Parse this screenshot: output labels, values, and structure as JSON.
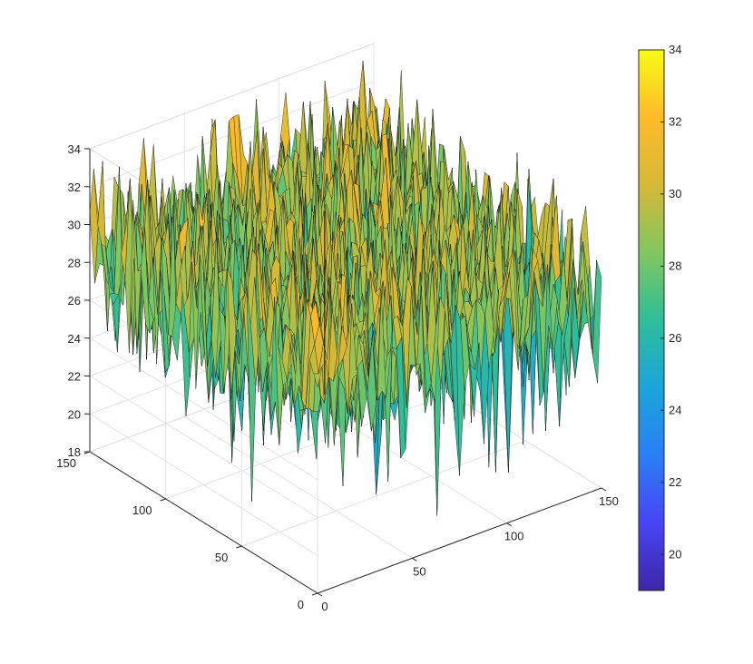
{
  "chart_data": {
    "type": "surface",
    "title": "",
    "xlabel": "",
    "ylabel": "",
    "zlabel": "",
    "x_range": [
      0,
      150
    ],
    "y_range": [
      0,
      150
    ],
    "z_range": [
      18,
      34
    ],
    "x_ticks": [
      "0",
      "50",
      "100",
      "150"
    ],
    "y_ticks": [
      "0",
      "50",
      "100",
      "150"
    ],
    "z_ticks": [
      "18",
      "20",
      "22",
      "24",
      "26",
      "28",
      "30",
      "32",
      "34"
    ],
    "grid": true,
    "grid_size": 150,
    "surface_mean": 28.5,
    "surface_range_min": 18.5,
    "surface_range_max": 33.5,
    "spike": {
      "x": 100,
      "y": 120,
      "z_high": 33.2,
      "z_low": 18.8
    },
    "colormap": [
      "#3e26a8",
      "#4745f4",
      "#2a7ff6",
      "#1ba5da",
      "#2ebe99",
      "#81c75f",
      "#d6b937",
      "#fdbb2a",
      "#f9fb15"
    ],
    "colorbar": {
      "min": 19,
      "max": 34,
      "ticks": [
        "20",
        "22",
        "24",
        "26",
        "28",
        "30",
        "32",
        "34"
      ],
      "location": "right"
    }
  }
}
